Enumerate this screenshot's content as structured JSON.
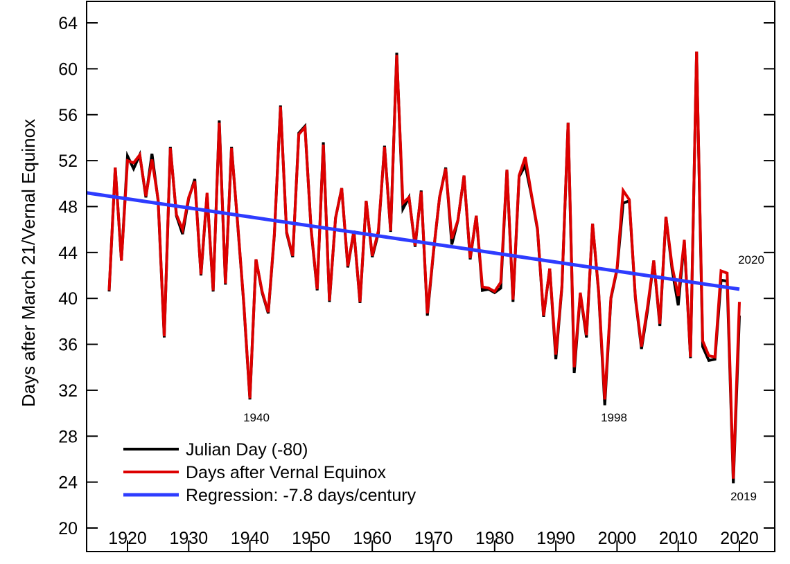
{
  "chart_data": {
    "type": "line",
    "title": "",
    "xlabel": "",
    "ylabel": "Days after March 21/Vernal Equinox",
    "xlim": [
      1913.3,
      2025.8
    ],
    "ylim": [
      18,
      65.9
    ],
    "xticks": [
      1920,
      1930,
      1940,
      1950,
      1960,
      1970,
      1980,
      1990,
      2000,
      2010,
      2020
    ],
    "yticks": [
      20,
      24,
      28,
      32,
      36,
      40,
      44,
      48,
      52,
      56,
      60,
      64
    ],
    "grid": false,
    "legend_position": "bottom-left",
    "x": [
      1917,
      1918,
      1919,
      1920,
      1921,
      1922,
      1923,
      1924,
      1925,
      1926,
      1927,
      1928,
      1929,
      1930,
      1931,
      1932,
      1933,
      1934,
      1935,
      1936,
      1937,
      1938,
      1939,
      1940,
      1941,
      1942,
      1943,
      1944,
      1945,
      1946,
      1947,
      1948,
      1949,
      1950,
      1951,
      1952,
      1953,
      1954,
      1955,
      1956,
      1957,
      1958,
      1959,
      1960,
      1961,
      1962,
      1963,
      1964,
      1965,
      1966,
      1967,
      1968,
      1969,
      1970,
      1971,
      1972,
      1973,
      1974,
      1975,
      1976,
      1977,
      1978,
      1979,
      1980,
      1981,
      1982,
      1983,
      1984,
      1985,
      1986,
      1987,
      1988,
      1989,
      1990,
      1991,
      1992,
      1993,
      1994,
      1995,
      1996,
      1997,
      1998,
      1999,
      2000,
      2001,
      2002,
      2003,
      2004,
      2005,
      2006,
      2007,
      2008,
      2009,
      2010,
      2011,
      2012,
      2013,
      2014,
      2015,
      2016,
      2017,
      2018,
      2019,
      2020
    ],
    "series": [
      {
        "name": "Julian Day (-80)",
        "color": "#000000",
        "values": [
          40.6,
          51.4,
          43.3,
          52.4,
          51.3,
          52.5,
          48.8,
          52.6,
          48.5,
          36.6,
          53.2,
          47.2,
          45.6,
          48.7,
          50.4,
          42.0,
          49.1,
          40.6,
          55.5,
          41.2,
          53.2,
          46.5,
          39.5,
          31.2,
          43.4,
          40.5,
          38.7,
          45.5,
          56.8,
          45.7,
          43.6,
          54.4,
          55.0,
          46.0,
          40.7,
          53.6,
          39.7,
          47.0,
          49.6,
          42.7,
          45.9,
          39.6,
          48.5,
          43.6,
          45.7,
          53.3,
          45.8,
          61.4,
          47.8,
          48.8,
          44.5,
          49.4,
          38.5,
          44.0,
          48.8,
          51.4,
          44.7,
          46.8,
          50.7,
          43.4,
          47.2,
          40.7,
          40.8,
          40.5,
          40.9,
          51.2,
          39.7,
          50.6,
          51.6,
          49.0,
          46.0,
          38.4,
          42.6,
          34.7,
          41.0,
          55.3,
          33.5,
          40.4,
          36.6,
          46.5,
          40.5,
          30.7,
          40.0,
          42.5,
          48.3,
          48.5,
          40.0,
          35.6,
          39.0,
          43.3,
          37.6,
          47.1,
          42.5,
          39.4,
          45.0,
          34.8,
          61.5,
          35.8,
          34.6,
          34.7,
          41.6,
          41.5,
          23.9,
          38.5
        ]
      },
      {
        "name": "Days after Vernal Equinox",
        "color": "#dd0000",
        "values": [
          40.7,
          51.4,
          43.3,
          52.0,
          51.8,
          52.5,
          48.9,
          52.1,
          48.6,
          36.7,
          53.1,
          47.3,
          46.0,
          48.8,
          50.2,
          42.1,
          49.2,
          40.7,
          55.3,
          41.3,
          53.1,
          46.6,
          39.6,
          31.3,
          43.4,
          40.6,
          38.8,
          45.6,
          56.7,
          45.8,
          43.7,
          54.3,
          54.9,
          46.1,
          40.8,
          53.4,
          39.8,
          47.0,
          49.6,
          42.8,
          45.9,
          39.7,
          48.5,
          43.7,
          45.9,
          53.2,
          45.9,
          61.2,
          48.3,
          48.8,
          44.6,
          49.3,
          38.7,
          44.1,
          48.8,
          51.3,
          45.2,
          46.8,
          50.7,
          43.5,
          47.2,
          41.0,
          40.9,
          40.6,
          41.4,
          51.2,
          39.9,
          50.7,
          52.3,
          49.1,
          46.1,
          38.5,
          42.6,
          35.1,
          41.1,
          55.3,
          34.0,
          40.5,
          36.8,
          46.5,
          40.6,
          31.2,
          40.1,
          42.6,
          49.4,
          48.6,
          40.1,
          35.8,
          39.3,
          43.3,
          37.8,
          47.1,
          42.8,
          40.2,
          45.1,
          34.9,
          61.5,
          36.3,
          35.0,
          34.9,
          42.4,
          42.2,
          24.3,
          39.7
        ]
      },
      {
        "name": "Regression: -7.8 days/century",
        "color": "#2e3cff",
        "x": [
          1913.3,
          2020
        ],
        "values": [
          49.2,
          40.8
        ]
      }
    ],
    "annotations": [
      "1940",
      "1998",
      "2020",
      "2019"
    ]
  }
}
